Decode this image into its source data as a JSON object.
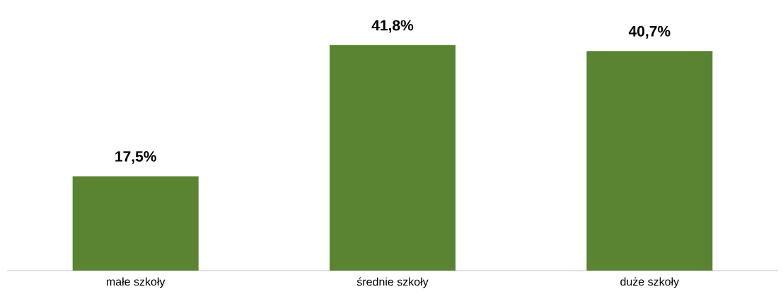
{
  "chart_data": {
    "type": "bar",
    "categories": [
      "małe szkoły",
      "średnie szkoły",
      "duże szkoły"
    ],
    "values": [
      17.5,
      41.8,
      40.7
    ],
    "value_labels": [
      "17,5%",
      "41,8%",
      "40,7%"
    ],
    "color": "#5a8431"
  }
}
